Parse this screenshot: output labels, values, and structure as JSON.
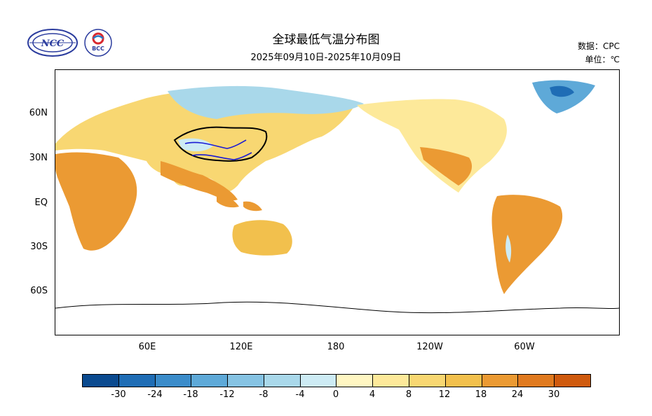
{
  "header": {
    "title": "全球最低气温分布图",
    "subtitle": "2025年09月10日-2025年10月09日",
    "source_label": "数据：CPC",
    "unit_label": "单位：℃"
  },
  "logos": [
    {
      "name": "NCC",
      "text": "NCC"
    },
    {
      "name": "BCC",
      "text": "BCC"
    }
  ],
  "map": {
    "lat_labels": [
      "60N",
      "30N",
      "EQ",
      "30S",
      "60S"
    ],
    "lon_labels": [
      "60E",
      "120E",
      "180",
      "120W",
      "60W"
    ]
  },
  "colorbar": {
    "colors": [
      "#0b4a8f",
      "#1f6db5",
      "#3b8cca",
      "#5ea9d8",
      "#86c3e3",
      "#a9d8ea",
      "#cdebf4",
      "#fff6c2",
      "#fde99a",
      "#f8d772",
      "#f2c04d",
      "#eb9a33",
      "#e07a1f",
      "#cf5a0e"
    ],
    "labels": [
      "-30",
      "-24",
      "-18",
      "-12",
      "-8",
      "-4",
      "0",
      "4",
      "8",
      "12",
      "18",
      "24",
      "30"
    ]
  }
}
